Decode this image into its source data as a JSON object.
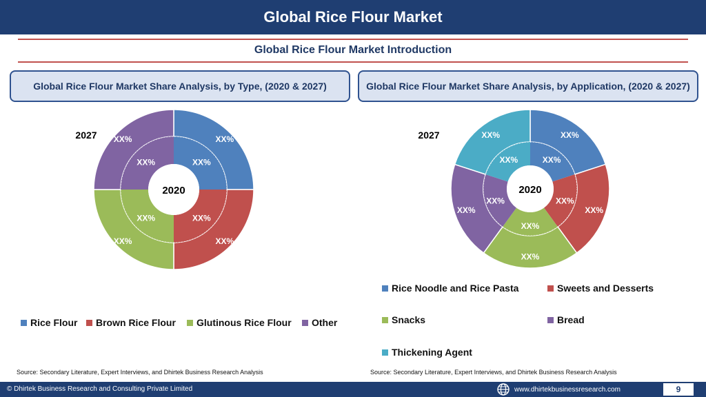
{
  "header": {
    "title": "Global Rice Flour Market"
  },
  "section": {
    "title": "Global Rice Flour Market  Introduction"
  },
  "panels": [
    {
      "heading": "Global Rice Flour Market  Share Analysis, by Type, (2020 & 2027)"
    },
    {
      "heading": "Global Rice Flour Market  Share Analysis, by Application, (2020 & 2027)"
    }
  ],
  "chart_data": [
    {
      "type": "pie",
      "variant": "double-donut",
      "rings": [
        "2027",
        "2020"
      ],
      "categories": [
        "Rice Flour",
        "Brown Rice Flour",
        "Glutinous Rice Flour",
        "Other"
      ],
      "colors": [
        "#4f81bd",
        "#c0504d",
        "#9bbb59",
        "#8064a2"
      ],
      "shares": [
        25,
        25,
        25,
        25
      ],
      "outer_labels": [
        "XX%",
        "XX%",
        "XX%",
        "XX%"
      ],
      "inner_labels": [
        "XX%",
        "XX%",
        "XX%",
        "XX%"
      ],
      "outer_ring_label": "2027",
      "center_label": "2020",
      "legend": "bottom"
    },
    {
      "type": "pie",
      "variant": "double-donut",
      "rings": [
        "2027",
        "2020"
      ],
      "categories": [
        "Rice Noodle and Rice Pasta",
        "Sweets and Desserts",
        "Snacks",
        "Bread",
        "Thickening Agent"
      ],
      "colors": [
        "#4f81bd",
        "#c0504d",
        "#9bbb59",
        "#8064a2",
        "#4bacc6"
      ],
      "shares": [
        20,
        20,
        20,
        20,
        20
      ],
      "outer_labels": [
        "XX%",
        "XX%",
        "XX%",
        "XX%",
        "XX%"
      ],
      "inner_labels": [
        "XX%",
        "XX%",
        "XX%",
        "XX%",
        "XX%"
      ],
      "outer_ring_label": "2027",
      "center_label": "2020",
      "legend": "bottom"
    }
  ],
  "sources": [
    "Source: Secondary Literature, Expert Interviews, and Dhirtek Business Research Analysis",
    "Source: Secondary Literature, Expert Interviews, and Dhirtek Business Research Analysis"
  ],
  "footer": {
    "copyright": "© Dhirtek Business Research and Consulting Private Limited",
    "website": "www.dhirtekbusinessresearch.com",
    "page": "9",
    "globe_icon": "globe-icon"
  }
}
